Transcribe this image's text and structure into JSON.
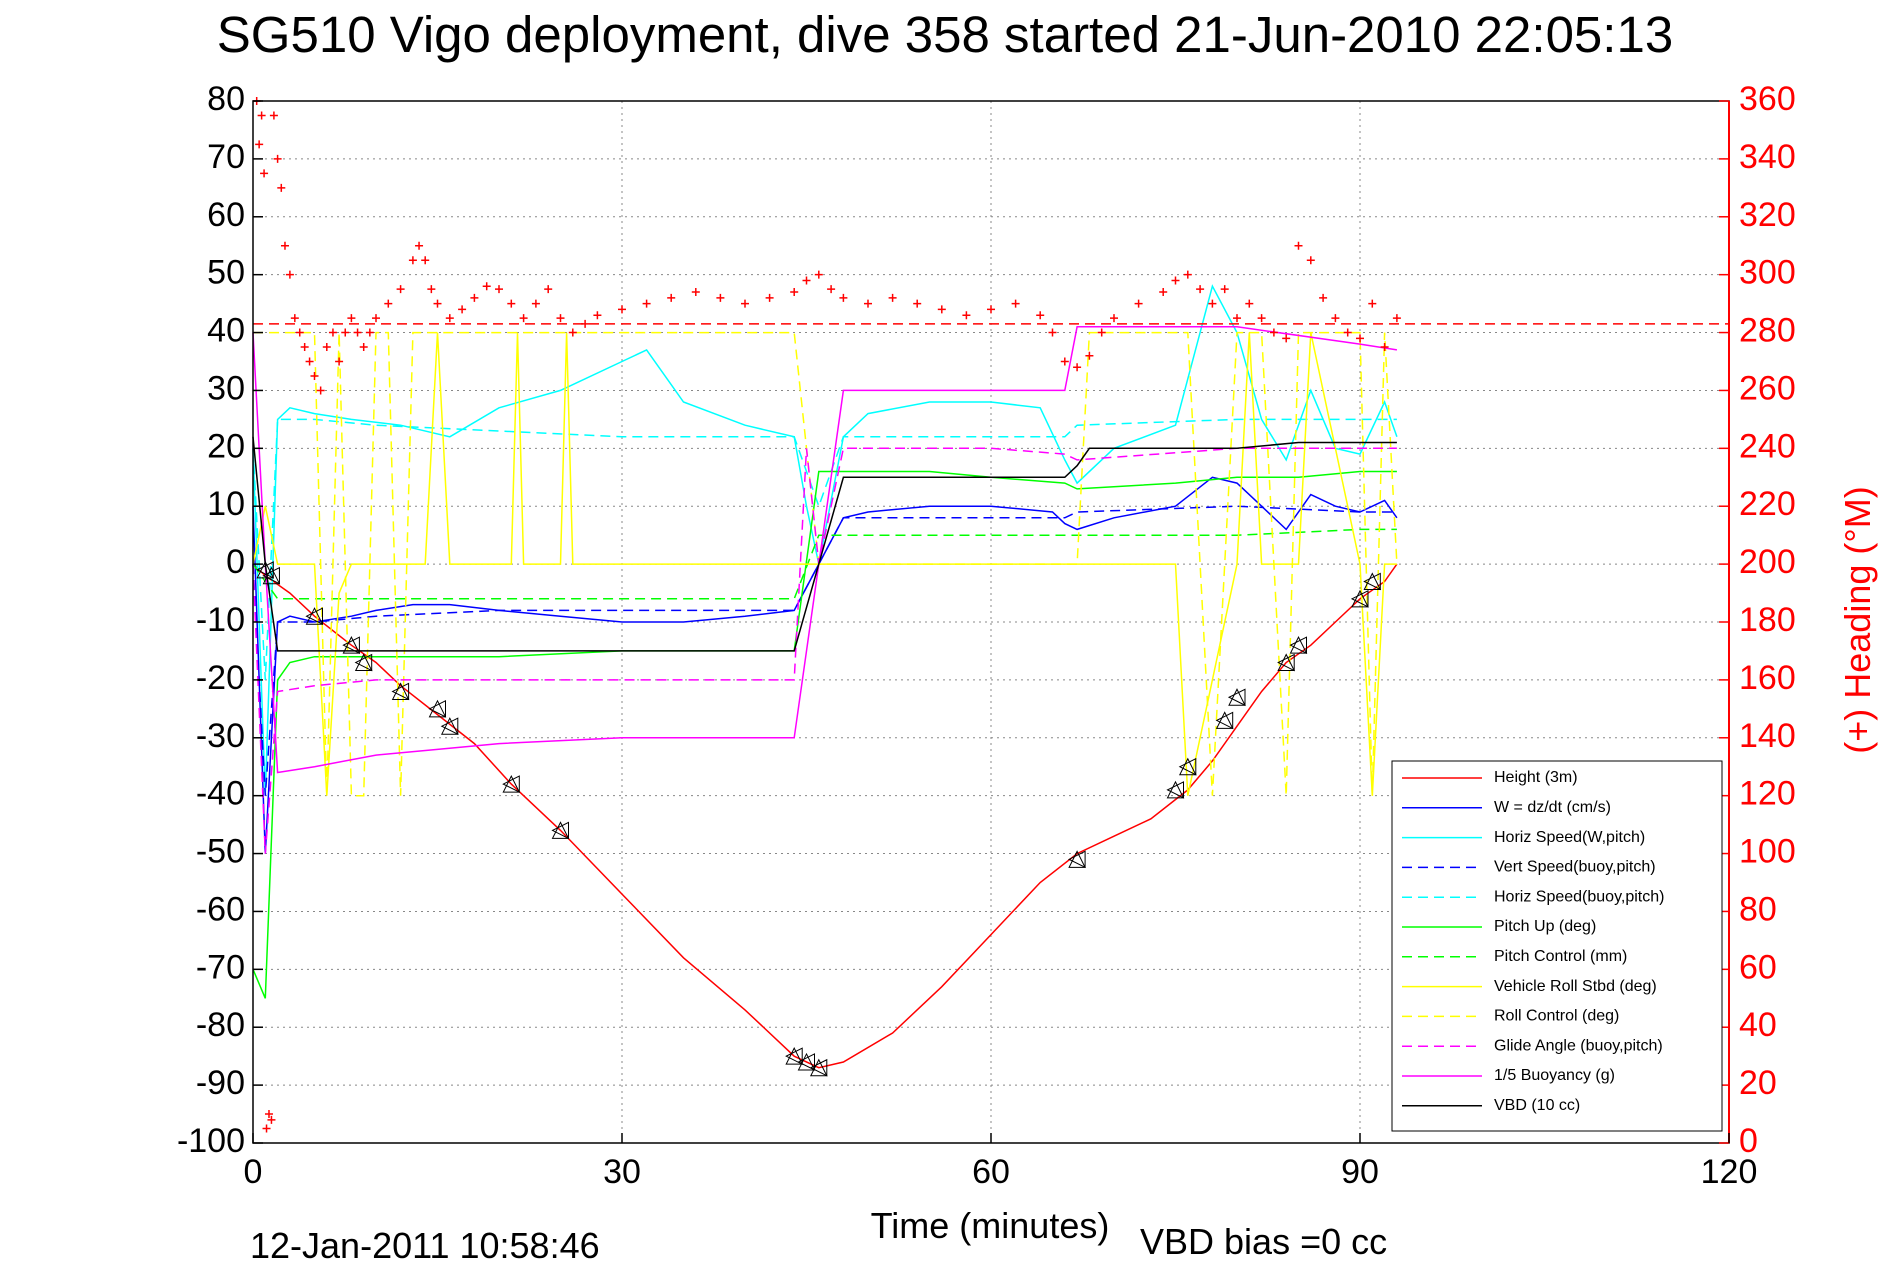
{
  "chart_data": {
    "type": "line",
    "title": "SG510 Vigo deployment, dive 358 started 21-Jun-2010 22:05:13",
    "xlabel": "Time (minutes)",
    "ylabel_right": "(+) Heading (°M)",
    "footer_left": "12-Jan-2011 10:58:46",
    "footer_right": "VBD bias =0 cc",
    "xlim": [
      0,
      120
    ],
    "ylim": [
      -100,
      80
    ],
    "ylim_right": [
      0,
      360
    ],
    "x_ticks": [
      0,
      30,
      60,
      90,
      120
    ],
    "y_ticks": [
      80,
      70,
      60,
      50,
      40,
      30,
      20,
      10,
      0,
      -10,
      -20,
      -30,
      -40,
      -50,
      -60,
      -70,
      -80,
      -90,
      -100
    ],
    "y_ticks_right": [
      360,
      340,
      320,
      300,
      280,
      260,
      240,
      220,
      200,
      180,
      160,
      140,
      120,
      100,
      80,
      60,
      40,
      20,
      0
    ],
    "grid": true,
    "legend_position": "lower-right",
    "heading_mean": 283,
    "colors": {
      "red": "#ff0000",
      "blue": "#0000ff",
      "cyan": "#00ffff",
      "green": "#00ff00",
      "yellow": "#ffff00",
      "magenta": "#ff00ff",
      "black": "#000000"
    },
    "series": [
      {
        "name": "Height (3m)",
        "color": "#ff0000",
        "dash": "solid",
        "x": [
          0,
          1,
          3,
          5,
          8,
          10,
          12,
          15,
          18,
          21,
          25,
          30,
          35,
          40,
          44,
          46,
          48,
          52,
          56,
          60,
          64,
          67,
          70,
          73,
          76,
          78,
          80,
          82,
          84,
          86,
          88,
          90,
          92,
          93
        ],
        "y": [
          0,
          -2,
          -5,
          -9,
          -14,
          -17,
          -21,
          -26,
          -31,
          -38,
          -46,
          -57,
          -68,
          -77,
          -85,
          -87,
          -86,
          -81,
          -73,
          -64,
          -55,
          -50,
          -47,
          -44,
          -39,
          -34,
          -28,
          -22,
          -17,
          -14,
          -10,
          -6,
          -3,
          0
        ]
      },
      {
        "name": "W = dz/dt (cm/s)",
        "color": "#0000ff",
        "dash": "solid",
        "x": [
          0,
          1,
          2,
          3,
          5,
          8,
          10,
          13,
          16,
          20,
          25,
          30,
          35,
          40,
          44,
          46,
          48,
          50,
          55,
          60,
          65,
          66,
          67,
          70,
          75,
          78,
          80,
          82,
          84,
          86,
          88,
          90,
          92,
          93
        ],
        "y": [
          10,
          -50,
          -10,
          -9,
          -10,
          -9,
          -8,
          -7,
          -7,
          -8,
          -9,
          -10,
          -10,
          -9,
          -8,
          0,
          8,
          9,
          10,
          10,
          9,
          7,
          6,
          8,
          10,
          15,
          14,
          10,
          6,
          12,
          10,
          9,
          11,
          8
        ]
      },
      {
        "name": "Horiz Speed(W,pitch)",
        "color": "#00ffff",
        "dash": "solid",
        "x": [
          0,
          1,
          2,
          3,
          5,
          8,
          12,
          16,
          20,
          25,
          30,
          32,
          35,
          40,
          44,
          45,
          46,
          48,
          50,
          55,
          60,
          64,
          66,
          67,
          70,
          75,
          78,
          80,
          82,
          84,
          86,
          88,
          90,
          92,
          93
        ],
        "y": [
          20,
          -40,
          25,
          27,
          26,
          25,
          24,
          22,
          27,
          30,
          35,
          37,
          28,
          24,
          22,
          10,
          0,
          22,
          26,
          28,
          28,
          27,
          18,
          14,
          20,
          24,
          48,
          40,
          25,
          18,
          30,
          20,
          19,
          28,
          22
        ]
      },
      {
        "name": "Vert Speed(buoy,pitch)",
        "color": "#0000ff",
        "dash": "dashed",
        "x": [
          0,
          1,
          2,
          5,
          10,
          20,
          30,
          40,
          44,
          46,
          48,
          60,
          66,
          67,
          80,
          90,
          93
        ],
        "y": [
          0,
          -40,
          -10,
          -10,
          -9,
          -8,
          -8,
          -8,
          -8,
          0,
          8,
          8,
          8,
          9,
          10,
          9,
          9
        ]
      },
      {
        "name": "Horiz Speed(buoy,pitch)",
        "color": "#00ffff",
        "dash": "dashed",
        "x": [
          0,
          1,
          2,
          5,
          10,
          20,
          30,
          40,
          44,
          46,
          48,
          60,
          66,
          67,
          80,
          90,
          93
        ],
        "y": [
          20,
          -20,
          25,
          25,
          24,
          23,
          22,
          22,
          22,
          10,
          22,
          22,
          22,
          24,
          25,
          25,
          25
        ]
      },
      {
        "name": "Pitch Up (deg)",
        "color": "#00ff00",
        "dash": "solid",
        "x": [
          0,
          1,
          2,
          3,
          5,
          10,
          20,
          30,
          40,
          44,
          46,
          48,
          55,
          60,
          66,
          67,
          75,
          80,
          85,
          90,
          93
        ],
        "y": [
          -70,
          -75,
          -20,
          -17,
          -16,
          -16,
          -16,
          -15,
          -15,
          -15,
          16,
          16,
          16,
          15,
          14,
          13,
          14,
          15,
          15,
          16,
          16
        ]
      },
      {
        "name": "Pitch Control (mm)",
        "color": "#00ff00",
        "dash": "dashed",
        "x": [
          0,
          2,
          5,
          10,
          20,
          30,
          40,
          44,
          46,
          48,
          60,
          66,
          67,
          80,
          90,
          93
        ],
        "y": [
          0,
          -6,
          -6,
          -6,
          -6,
          -6,
          -6,
          -6,
          5,
          5,
          5,
          5,
          5,
          5,
          6,
          6
        ]
      },
      {
        "name": "Vehicle Roll Stbd (deg)",
        "color": "#ffff00",
        "dash": "solid",
        "x": [
          0,
          1,
          2,
          5,
          6,
          7,
          8,
          9,
          14,
          15,
          16,
          21,
          21.5,
          22,
          25,
          25.5,
          26,
          40,
          44,
          46,
          60,
          66,
          67,
          75,
          76,
          80,
          81,
          82,
          85,
          86,
          90,
          91,
          92,
          93
        ],
        "y": [
          0,
          10,
          0,
          0,
          -40,
          -5,
          0,
          0,
          0,
          40,
          0,
          0,
          40,
          0,
          0,
          40,
          0,
          0,
          0,
          0,
          0,
          0,
          0,
          0,
          -40,
          0,
          40,
          0,
          0,
          40,
          0,
          -40,
          0,
          0
        ]
      },
      {
        "name": "Roll Control (deg)",
        "color": "#ffff00",
        "dash": "dashed",
        "x": [
          0,
          1,
          2,
          4,
          5,
          6,
          7,
          8,
          9,
          10,
          11,
          12,
          13,
          14,
          20,
          25,
          30,
          40,
          44,
          46,
          60,
          66,
          67,
          68,
          75,
          76,
          78,
          80,
          82,
          84,
          85,
          86,
          90,
          91,
          92,
          93
        ],
        "y": [
          40,
          40,
          40,
          40,
          40,
          -40,
          40,
          -40,
          -40,
          40,
          40,
          -40,
          40,
          40,
          40,
          40,
          40,
          40,
          40,
          0,
          0,
          0,
          0,
          40,
          40,
          40,
          -40,
          40,
          40,
          -40,
          40,
          40,
          40,
          -40,
          40,
          0
        ]
      },
      {
        "name": "Glide Angle (buoy,pitch)",
        "color": "#ff00ff",
        "dash": "dashed",
        "x": [
          0,
          1,
          2,
          5,
          10,
          20,
          30,
          40,
          44,
          45,
          46,
          48,
          60,
          66,
          67,
          80,
          90,
          93
        ],
        "y": [
          0,
          -50,
          -22,
          -21,
          -20,
          -20,
          -20,
          -20,
          -20,
          20,
          0,
          20,
          20,
          19,
          18,
          20,
          20,
          20
        ]
      },
      {
        "name": "1/5 Buoyancy (g)",
        "color": "#ff00ff",
        "dash": "solid",
        "x": [
          0,
          1,
          2,
          5,
          10,
          15,
          20,
          30,
          40,
          44,
          46,
          48,
          60,
          66,
          67,
          80,
          90,
          93
        ],
        "y": [
          40,
          0,
          -36,
          -35,
          -33,
          -32,
          -31,
          -30,
          -30,
          -30,
          0,
          30,
          30,
          30,
          41,
          41,
          38,
          37
        ]
      },
      {
        "name": "VBD (10 cc)",
        "color": "#000000",
        "dash": "solid",
        "x": [
          0,
          1,
          2,
          10,
          20,
          30,
          40,
          44,
          46,
          48,
          60,
          66,
          67,
          68,
          80,
          85,
          90,
          93
        ],
        "y": [
          22,
          0,
          -15,
          -15,
          -15,
          -15,
          -15,
          -15,
          0,
          15,
          15,
          15,
          17,
          20,
          20,
          21,
          21,
          21
        ]
      }
    ],
    "heading_points": {
      "name": "Heading",
      "x": [
        0.3,
        0.5,
        0.7,
        0.9,
        1.1,
        1.3,
        1.5,
        1.7,
        2.0,
        2.3,
        2.6,
        3.0,
        3.4,
        3.8,
        4.2,
        4.6,
        5.0,
        5.5,
        6.0,
        6.5,
        7.0,
        7.5,
        8,
        8.5,
        9,
        9.5,
        10,
        11,
        12,
        13,
        13.5,
        14,
        14.5,
        15,
        16,
        17,
        18,
        19,
        20,
        21,
        22,
        23,
        24,
        25,
        26,
        27,
        28,
        30,
        32,
        34,
        36,
        38,
        40,
        42,
        44,
        45,
        46,
        47,
        48,
        50,
        52,
        54,
        56,
        58,
        60,
        62,
        64,
        65,
        66,
        67,
        68,
        69,
        70,
        72,
        74,
        75,
        76,
        77,
        78,
        79,
        80,
        81,
        82,
        83,
        84,
        85,
        86,
        87,
        88,
        89,
        90,
        91,
        92,
        93
      ],
      "y": [
        360,
        345,
        355,
        335,
        5,
        10,
        8,
        355,
        340,
        330,
        310,
        300,
        285,
        280,
        275,
        270,
        265,
        260,
        275,
        280,
        270,
        280,
        285,
        280,
        275,
        280,
        285,
        290,
        295,
        305,
        310,
        305,
        295,
        290,
        285,
        288,
        292,
        296,
        295,
        290,
        285,
        290,
        295,
        285,
        280,
        283,
        286,
        288,
        290,
        292,
        294,
        292,
        290,
        292,
        294,
        298,
        300,
        295,
        292,
        290,
        292,
        290,
        288,
        286,
        288,
        290,
        286,
        280,
        270,
        268,
        272,
        280,
        285,
        290,
        294,
        298,
        300,
        295,
        290,
        295,
        285,
        290,
        285,
        280,
        278,
        310,
        305,
        292,
        285,
        280,
        278,
        290,
        275,
        285
      ]
    },
    "triangle_markers": {
      "x": [
        1,
        1.5,
        5,
        8,
        9,
        12,
        15,
        16,
        21,
        25,
        44,
        45,
        46,
        67,
        75,
        76,
        79,
        80,
        84,
        85,
        90,
        91
      ],
      "y": [
        -1,
        -2,
        -9,
        -14,
        -17,
        -22,
        -25,
        -28,
        -38,
        -46,
        -85,
        -86,
        -87,
        -51,
        -39,
        -35,
        -27,
        -23,
        -17,
        -14,
        -6,
        -3
      ]
    }
  }
}
